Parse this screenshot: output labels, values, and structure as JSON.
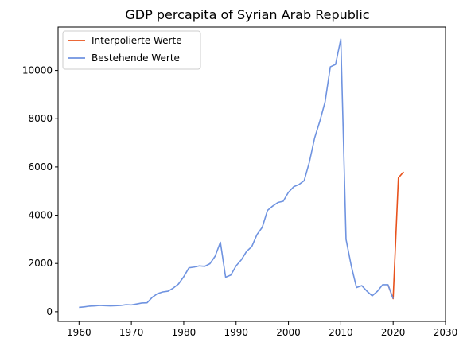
{
  "chart_data": {
    "type": "line",
    "title": "GDP percapita of Syrian Arab Republic",
    "xlabel": "",
    "ylabel": "",
    "xlim": [
      1956,
      2030
    ],
    "ylim": [
      -400,
      11800
    ],
    "xticks": [
      1960,
      1970,
      1980,
      1990,
      2000,
      2010,
      2020,
      2030
    ],
    "yticks": [
      0,
      2000,
      4000,
      6000,
      8000,
      10000
    ],
    "grid": false,
    "legend_position": "top-left",
    "series": [
      {
        "name": "Interpolierte Werte",
        "color": "#e8521c",
        "x": [
          2019,
          2020,
          2021,
          2022
        ],
        "y": [
          1120,
          540,
          5550,
          5800
        ]
      },
      {
        "name": "Bestehende Werte",
        "color": "#6f93e0",
        "x": [
          1960,
          1961,
          1962,
          1963,
          1964,
          1965,
          1966,
          1967,
          1968,
          1969,
          1970,
          1971,
          1972,
          1973,
          1974,
          1975,
          1976,
          1977,
          1978,
          1979,
          1980,
          1981,
          1982,
          1983,
          1984,
          1985,
          1986,
          1987,
          1988,
          1989,
          1990,
          1991,
          1992,
          1993,
          1994,
          1995,
          1996,
          1997,
          1998,
          1999,
          2000,
          2001,
          2002,
          2003,
          2004,
          2005,
          2006,
          2007,
          2008,
          2009,
          2010,
          2011,
          2012,
          2013,
          2014,
          2015,
          2016,
          2017,
          2018,
          2019,
          2020
        ],
        "y": [
          180,
          200,
          230,
          240,
          260,
          250,
          240,
          250,
          260,
          290,
          280,
          320,
          360,
          370,
          600,
          750,
          820,
          850,
          980,
          1150,
          1450,
          1820,
          1850,
          1900,
          1880,
          1990,
          2300,
          2880,
          1430,
          1520,
          1900,
          2150,
          2500,
          2700,
          3200,
          3500,
          4200,
          4380,
          4530,
          4580,
          4950,
          5180,
          5270,
          5430,
          6200,
          7200,
          7900,
          8700,
          10150,
          10250,
          11300,
          3000,
          1900,
          1000,
          1080,
          850,
          660,
          850,
          1120,
          1120,
          540
        ]
      }
    ]
  }
}
